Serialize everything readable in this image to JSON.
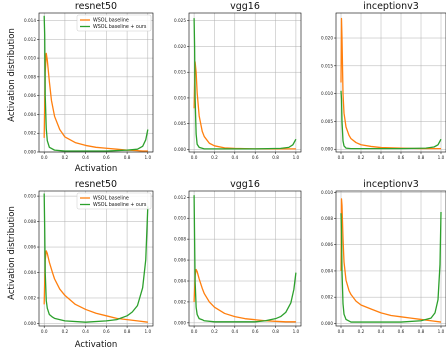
{
  "figure": {
    "colors": {
      "baseline": "#ff7f0e",
      "ours": "#2ca02c",
      "grid": "#b0b0b0",
      "axis": "#000000"
    },
    "ylabel": "Activation distribution",
    "xlabel": "Activation"
  },
  "chart_data": [
    {
      "type": "line",
      "title": "resnet50",
      "grid": true,
      "legend": "top-right",
      "xlim": [
        -0.05,
        1.05
      ],
      "ylim": [
        0,
        0.0148
      ],
      "xticks": [
        "0.0",
        "0.2",
        "0.4",
        "0.6",
        "0.8",
        "1.0"
      ],
      "yticks": [
        "0.000",
        "0.002",
        "0.004",
        "0.006",
        "0.008",
        "0.010",
        "0.012",
        "0.014"
      ],
      "series": [
        {
          "name": "WSOL baseline",
          "color": "#ff7f0e",
          "x": [
            0,
            0.01,
            0.02,
            0.03,
            0.05,
            0.07,
            0.1,
            0.15,
            0.2,
            0.3,
            0.4,
            0.5,
            0.6,
            0.7,
            0.8,
            0.9,
            0.95,
            1.0
          ],
          "y": [
            0.0015,
            0.0085,
            0.0105,
            0.0098,
            0.0075,
            0.0055,
            0.0038,
            0.0024,
            0.0016,
            0.001,
            0.0007,
            0.0005,
            0.0004,
            0.0003,
            0.0002,
            0.00015,
            0.0001,
            0.0001
          ]
        },
        {
          "name": "WSOL baseline + ours",
          "color": "#2ca02c",
          "x": [
            0,
            0.005,
            0.01,
            0.02,
            0.03,
            0.05,
            0.1,
            0.2,
            0.4,
            0.6,
            0.8,
            0.9,
            0.95,
            0.98,
            1.0
          ],
          "y": [
            0.0145,
            0.0125,
            0.006,
            0.0025,
            0.0012,
            0.0005,
            0.0002,
            0.0001,
            0.0001,
            0.0001,
            0.0002,
            0.0003,
            0.0006,
            0.0013,
            0.0024
          ]
        }
      ]
    },
    {
      "type": "line",
      "title": "vgg16",
      "grid": true,
      "xlim": [
        -0.05,
        1.05
      ],
      "ylim": [
        -0.0005,
        0.0265
      ],
      "xticks": [
        "0.0",
        "0.2",
        "0.4",
        "0.6",
        "0.8",
        "1.0"
      ],
      "yticks": [
        "0.000",
        "0.005",
        "0.010",
        "0.015",
        "0.020",
        "0.025"
      ],
      "series": [
        {
          "name": "WSOL baseline",
          "color": "#ff7f0e",
          "x": [
            0,
            0.01,
            0.02,
            0.03,
            0.05,
            0.08,
            0.1,
            0.15,
            0.2,
            0.3,
            0.4,
            0.6,
            0.8,
            1.0
          ],
          "y": [
            0.008,
            0.017,
            0.015,
            0.011,
            0.0065,
            0.0035,
            0.0025,
            0.0012,
            0.0007,
            0.0003,
            0.0002,
            0.0001,
            0.0001,
            0.0001
          ]
        },
        {
          "name": "WSOL baseline + ours",
          "color": "#2ca02c",
          "x": [
            0,
            0.005,
            0.01,
            0.02,
            0.03,
            0.05,
            0.1,
            0.3,
            0.6,
            0.85,
            0.93,
            0.97,
            1.0
          ],
          "y": [
            0.0255,
            0.02,
            0.01,
            0.003,
            0.001,
            0.0004,
            0.0001,
            0.0001,
            0.0001,
            0.0002,
            0.0004,
            0.0009,
            0.002
          ]
        }
      ]
    },
    {
      "type": "line",
      "title": "inceptionv3",
      "grid": true,
      "xlim": [
        -0.05,
        1.05
      ],
      "ylim": [
        -0.0005,
        0.0245
      ],
      "xticks": [
        "0.0",
        "0.2",
        "0.4",
        "0.6",
        "0.8",
        "1.0"
      ],
      "yticks": [
        "0.000",
        "0.005",
        "0.010",
        "0.015",
        "0.020"
      ],
      "series": [
        {
          "name": "WSOL baseline",
          "color": "#ff7f0e",
          "x": [
            0,
            0.005,
            0.01,
            0.02,
            0.03,
            0.05,
            0.08,
            0.1,
            0.15,
            0.2,
            0.3,
            0.4,
            0.6,
            0.8,
            1.0
          ],
          "y": [
            0.012,
            0.0235,
            0.02,
            0.01,
            0.0065,
            0.004,
            0.0025,
            0.0019,
            0.0012,
            0.0008,
            0.0005,
            0.0003,
            0.0002,
            0.0001,
            0.0001
          ]
        },
        {
          "name": "WSOL baseline + ours",
          "color": "#2ca02c",
          "x": [
            0,
            0.005,
            0.01,
            0.02,
            0.03,
            0.05,
            0.1,
            0.3,
            0.6,
            0.85,
            0.93,
            0.97,
            1.0
          ],
          "y": [
            0.0105,
            0.009,
            0.005,
            0.0015,
            0.0006,
            0.0002,
            0.0001,
            0.0001,
            0.0001,
            0.0002,
            0.0004,
            0.0008,
            0.0018
          ]
        }
      ]
    },
    {
      "type": "line",
      "title": "resnet50",
      "grid": true,
      "legend": "top-right",
      "xlim": [
        -0.05,
        1.05
      ],
      "ylim": [
        -0.0002,
        0.0104
      ],
      "xticks": [
        "0.0",
        "0.2",
        "0.4",
        "0.6",
        "0.8",
        "1.0"
      ],
      "yticks": [
        "0.000",
        "0.002",
        "0.004",
        "0.006",
        "0.008",
        "0.010"
      ],
      "series": [
        {
          "name": "WSOL baseline",
          "color": "#ff7f0e",
          "x": [
            0,
            0.01,
            0.02,
            0.03,
            0.05,
            0.08,
            0.1,
            0.15,
            0.2,
            0.3,
            0.4,
            0.5,
            0.6,
            0.7,
            0.8,
            0.9,
            1.0
          ],
          "y": [
            0.0015,
            0.005,
            0.0057,
            0.0055,
            0.0048,
            0.004,
            0.0035,
            0.0027,
            0.0022,
            0.0015,
            0.0011,
            0.0008,
            0.0006,
            0.0004,
            0.0003,
            0.0002,
            0.0001
          ]
        },
        {
          "name": "WSOL baseline + ours",
          "color": "#2ca02c",
          "x": [
            0,
            0.005,
            0.01,
            0.02,
            0.03,
            0.05,
            0.08,
            0.1,
            0.2,
            0.4,
            0.6,
            0.7,
            0.8,
            0.85,
            0.9,
            0.95,
            0.98,
            1.0
          ],
          "y": [
            0.0102,
            0.0075,
            0.004,
            0.0018,
            0.0012,
            0.0007,
            0.0005,
            0.0004,
            0.0002,
            0.0001,
            0.0002,
            0.0003,
            0.0006,
            0.0009,
            0.0014,
            0.0028,
            0.005,
            0.0092
          ]
        }
      ]
    },
    {
      "type": "line",
      "title": "vgg16",
      "grid": true,
      "xlim": [
        -0.05,
        1.05
      ],
      "ylim": [
        -0.0003,
        0.0126
      ],
      "xticks": [
        "0.0",
        "0.2",
        "0.4",
        "0.6",
        "0.8",
        "1.0"
      ],
      "yticks": [
        "0.000",
        "0.002",
        "0.004",
        "0.006",
        "0.008",
        "0.010",
        "0.012"
      ],
      "series": [
        {
          "name": "WSOL baseline",
          "color": "#ff7f0e",
          "x": [
            0,
            0.01,
            0.02,
            0.03,
            0.05,
            0.08,
            0.1,
            0.15,
            0.2,
            0.3,
            0.4,
            0.5,
            0.6,
            0.7,
            0.8,
            0.9,
            1.0
          ],
          "y": [
            0.002,
            0.0045,
            0.0051,
            0.0049,
            0.0042,
            0.0033,
            0.0028,
            0.002,
            0.0015,
            0.0009,
            0.0006,
            0.0004,
            0.0003,
            0.0002,
            0.00015,
            0.0001,
            0.0001
          ]
        },
        {
          "name": "WSOL baseline + ours",
          "color": "#2ca02c",
          "x": [
            0,
            0.005,
            0.01,
            0.02,
            0.03,
            0.05,
            0.08,
            0.1,
            0.2,
            0.4,
            0.6,
            0.7,
            0.8,
            0.85,
            0.9,
            0.95,
            0.98,
            1.0
          ],
          "y": [
            0.0122,
            0.008,
            0.004,
            0.0015,
            0.0008,
            0.0004,
            0.0003,
            0.0002,
            0.0001,
            0.0001,
            0.0001,
            0.0002,
            0.0004,
            0.0006,
            0.001,
            0.0019,
            0.0032,
            0.0048
          ]
        }
      ]
    },
    {
      "type": "line",
      "title": "inceptionv3",
      "grid": true,
      "xlim": [
        -0.05,
        1.05
      ],
      "ylim": [
        -0.0002,
        0.0101
      ],
      "xticks": [
        "0.0",
        "0.2",
        "0.4",
        "0.6",
        "0.8",
        "1.0"
      ],
      "yticks": [
        "0.000",
        "0.002",
        "0.004",
        "0.006",
        "0.008",
        "0.010"
      ],
      "series": [
        {
          "name": "WSOL baseline",
          "color": "#ff7f0e",
          "x": [
            0,
            0.005,
            0.01,
            0.02,
            0.03,
            0.05,
            0.08,
            0.1,
            0.15,
            0.2,
            0.3,
            0.4,
            0.5,
            0.6,
            0.7,
            0.8,
            0.9,
            1.0
          ],
          "y": [
            0.004,
            0.0095,
            0.009,
            0.0065,
            0.0047,
            0.0033,
            0.0025,
            0.0022,
            0.0017,
            0.0014,
            0.0011,
            0.0008,
            0.0006,
            0.0005,
            0.0004,
            0.0003,
            0.0002,
            0.0001
          ]
        },
        {
          "name": "WSOL baseline + ours",
          "color": "#2ca02c",
          "x": [
            0,
            0.005,
            0.01,
            0.02,
            0.03,
            0.05,
            0.1,
            0.3,
            0.6,
            0.8,
            0.9,
            0.94,
            0.97,
            0.99,
            1.0
          ],
          "y": [
            0.0084,
            0.007,
            0.004,
            0.0015,
            0.0007,
            0.0003,
            0.0001,
            0.0001,
            0.0001,
            0.0002,
            0.0004,
            0.0008,
            0.0018,
            0.0045,
            0.0085
          ]
        }
      ]
    }
  ]
}
